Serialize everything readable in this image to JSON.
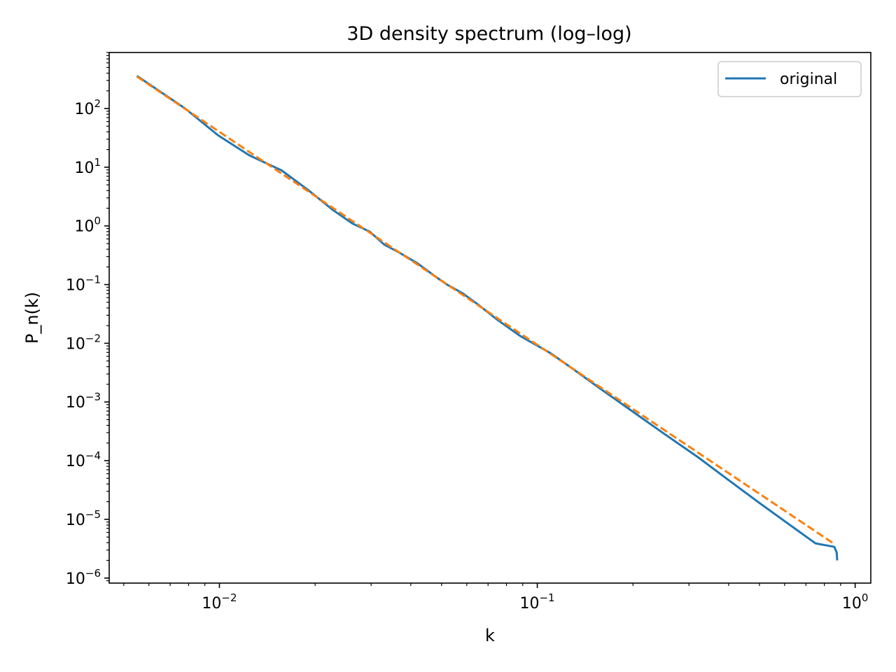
{
  "chart_data": {
    "type": "line",
    "title": "3D density spectrum (log–log)",
    "xlabel": "k",
    "ylabel": "P_n(k)",
    "xscale": "log",
    "yscale": "log",
    "xlim": [
      0.0045,
      1.12
    ],
    "ylim": [
      8.2e-07,
      900
    ],
    "grid": false,
    "legend": {
      "location": "top-right",
      "entries": [
        "original"
      ]
    },
    "x_tick_labels": [
      {
        "base": "10",
        "exp": "−2",
        "value": 0.01
      },
      {
        "base": "10",
        "exp": "−1",
        "value": 0.1
      },
      {
        "base": "10",
        "exp": "0",
        "value": 1
      }
    ],
    "y_tick_labels": [
      {
        "base": "10",
        "exp": "2",
        "value": 100
      },
      {
        "base": "10",
        "exp": "1",
        "value": 10
      },
      {
        "base": "10",
        "exp": "0",
        "value": 1
      },
      {
        "base": "10",
        "exp": "−1",
        "value": 0.1
      },
      {
        "base": "10",
        "exp": "−2",
        "value": 0.01
      },
      {
        "base": "10",
        "exp": "−3",
        "value": 0.001
      },
      {
        "base": "10",
        "exp": "−4",
        "value": 0.0001
      },
      {
        "base": "10",
        "exp": "−5",
        "value": 1e-05
      },
      {
        "base": "10",
        "exp": "−6",
        "value": 1e-06
      }
    ],
    "series": [
      {
        "name": "original",
        "color": "#1f77b4",
        "style": "solid",
        "x": [
          0.0055,
          0.0078,
          0.0099,
          0.0124,
          0.0157,
          0.019,
          0.0228,
          0.0262,
          0.0297,
          0.033,
          0.0365,
          0.042,
          0.048,
          0.052,
          0.058,
          0.065,
          0.075,
          0.088,
          0.1,
          0.11,
          0.13,
          0.16,
          0.2,
          0.25,
          0.32,
          0.4,
          0.5,
          0.63,
          0.75,
          0.86,
          0.875,
          0.878
        ],
        "y": [
          360,
          100,
          35,
          16,
          8.8,
          4.1,
          1.85,
          1.1,
          0.8,
          0.48,
          0.36,
          0.23,
          0.135,
          0.1,
          0.072,
          0.046,
          0.025,
          0.0135,
          0.0091,
          0.0068,
          0.0036,
          0.0016,
          0.00068,
          0.00029,
          0.000115,
          4.65e-05,
          1.9e-05,
          7.7e-06,
          3.9e-06,
          3.4e-06,
          2.7e-06,
          2e-06
        ]
      },
      {
        "name": "",
        "color": "#ff7f0e",
        "style": "dashed",
        "x": [
          0.0055,
          0.86
        ],
        "y": [
          350,
          3.8e-06
        ]
      }
    ]
  }
}
